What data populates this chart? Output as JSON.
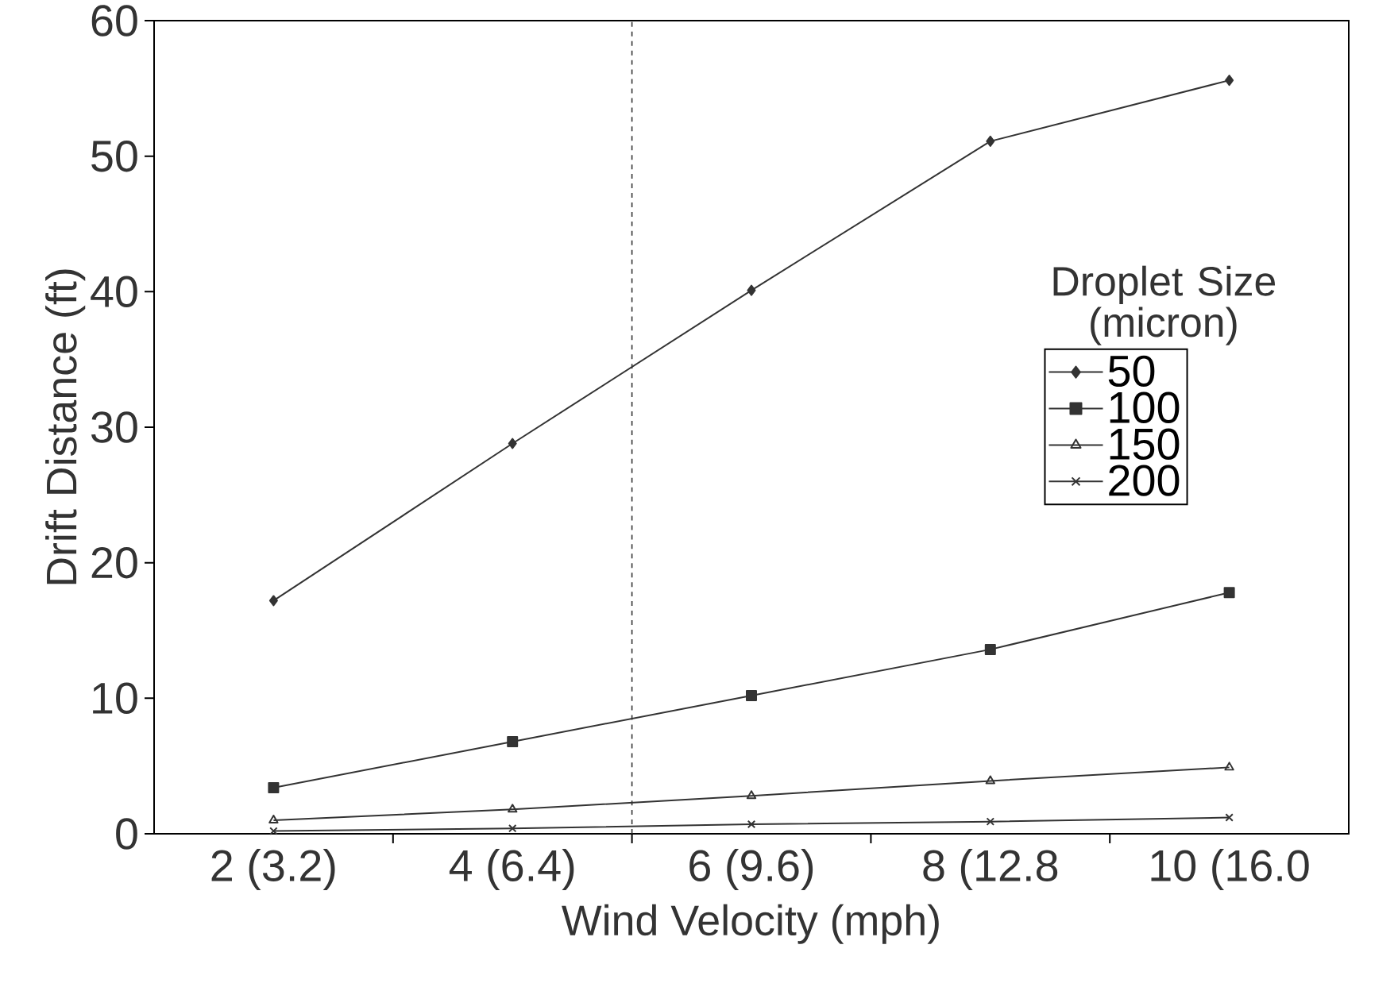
{
  "chart_data": {
    "type": "line",
    "xlabel": "Wind Velocity (mph)",
    "ylabel": "Drift Distance (ft)",
    "legend_title": "Droplet Size (micron)",
    "categories": [
      "2 (3.2)",
      "4 (6.4)",
      "6 (9.6)",
      "8 (12.8",
      "10 (16.0"
    ],
    "series": [
      {
        "name": "50",
        "color": "#333333",
        "marker": "diamond",
        "values": [
          17.2,
          28.8,
          40.1,
          51.1,
          55.6
        ]
      },
      {
        "name": "100",
        "color": "#333333",
        "marker": "square",
        "values": [
          3.4,
          6.8,
          10.2,
          13.6,
          17.8
        ]
      },
      {
        "name": "150",
        "color": "#333333",
        "marker": "triangle",
        "values": [
          1.0,
          1.8,
          2.8,
          3.9,
          4.9
        ]
      },
      {
        "name": "200",
        "color": "#333333",
        "marker": "cross",
        "values": [
          0.2,
          0.4,
          0.7,
          0.9,
          1.2
        ]
      }
    ],
    "ylim": [
      0,
      60
    ],
    "yticks": [
      0,
      10,
      20,
      30,
      40,
      50,
      60
    ],
    "grid": false,
    "legend": "right",
    "line_style": "solid"
  }
}
